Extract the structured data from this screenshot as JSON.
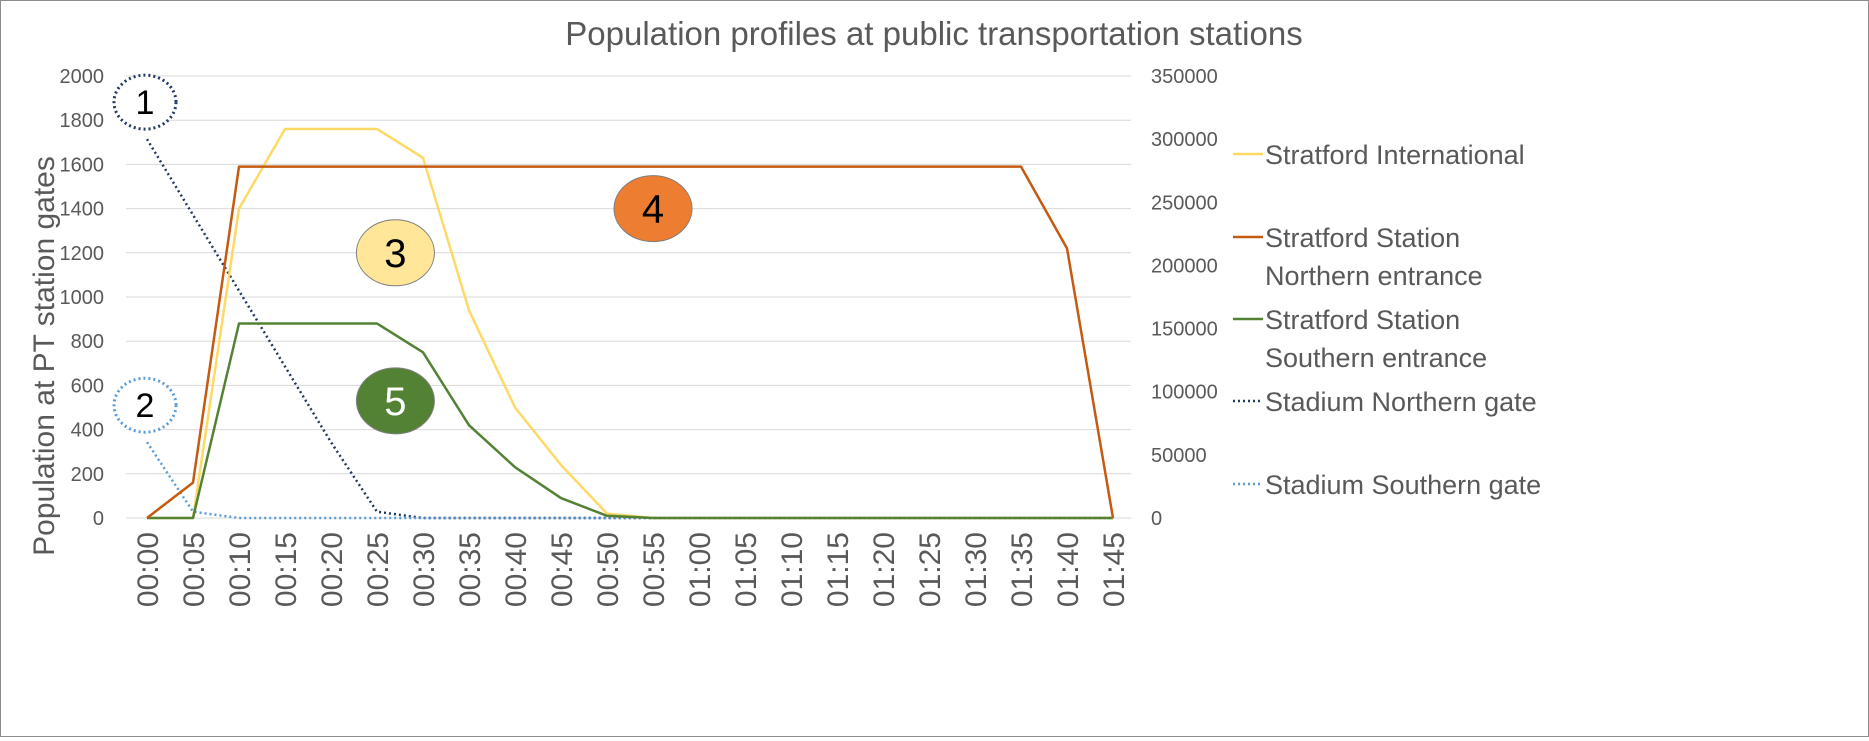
{
  "colors": {
    "stratford_international": "#ffd966",
    "stratford_northern": "#c55a11",
    "stratford_southern": "#548235",
    "stadium_northern": "#1f3864",
    "stadium_southern": "#5b9bd5",
    "grid": "#d9d9d9",
    "axis_text": "#595959",
    "title_text": "#595959",
    "marker3_fill": "#ffe699",
    "marker4_fill": "#ed7d31",
    "marker5_fill": "#548235"
  },
  "chart_data": {
    "type": "line",
    "title": "Population profiles at public transportation stations",
    "ylabel": "Population at PT station gates",
    "y2label": "",
    "xlabel": "",
    "ylim": [
      0,
      2000
    ],
    "y2lim": [
      0,
      350000
    ],
    "yticks": [
      "0",
      "200",
      "400",
      "600",
      "800",
      "1000",
      "1200",
      "1400",
      "1600",
      "1800",
      "2000"
    ],
    "y2ticks": [
      "0",
      "50000",
      "100000",
      "150000",
      "200000",
      "250000",
      "300000",
      "350000"
    ],
    "grid": true,
    "legend_position": "right",
    "categories": [
      "00:00",
      "00:05",
      "00:10",
      "00:15",
      "00:20",
      "00:25",
      "00:30",
      "00:35",
      "00:40",
      "00:45",
      "00:50",
      "00:55",
      "01:00",
      "01:05",
      "01:10",
      "01:15",
      "01:20",
      "01:25",
      "01:30",
      "01:35",
      "01:40",
      "01:45"
    ],
    "series": [
      {
        "name": "Stratford International",
        "axis": "left",
        "style": "solid",
        "color_key": "stratford_international",
        "values": [
          0,
          0,
          1400,
          1760,
          1760,
          1760,
          1630,
          940,
          500,
          240,
          20,
          0,
          0,
          0,
          0,
          0,
          0,
          0,
          0,
          0,
          0,
          0
        ]
      },
      {
        "name": "Stratford Station Northern entrance",
        "axis": "left",
        "style": "solid",
        "color_key": "stratford_northern",
        "values": [
          0,
          160,
          1590,
          1590,
          1590,
          1590,
          1590,
          1590,
          1590,
          1590,
          1590,
          1590,
          1590,
          1590,
          1590,
          1590,
          1590,
          1590,
          1590,
          1590,
          1220,
          0
        ]
      },
      {
        "name": "Stratford Station Southern entrance",
        "axis": "left",
        "style": "solid",
        "color_key": "stratford_southern",
        "values": [
          0,
          0,
          880,
          880,
          880,
          880,
          750,
          420,
          230,
          90,
          10,
          0,
          0,
          0,
          0,
          0,
          0,
          0,
          0,
          0,
          0,
          0
        ]
      },
      {
        "name": "Stadium Northern gate",
        "axis": "right",
        "style": "dotted",
        "color_key": "stadium_northern",
        "values": [
          300000,
          240000,
          180000,
          120000,
          60000,
          5000,
          0,
          0,
          0,
          0,
          0,
          0,
          0,
          0,
          0,
          0,
          0,
          0,
          0,
          0,
          0,
          0
        ]
      },
      {
        "name": "Stadium Southern gate",
        "axis": "right",
        "style": "dotted",
        "color_key": "stadium_southern",
        "values": [
          60000,
          5000,
          0,
          0,
          0,
          0,
          0,
          0,
          0,
          0,
          0,
          0,
          0,
          0,
          0,
          0,
          0,
          0,
          0,
          0,
          0,
          0
        ]
      }
    ],
    "legend_lines": [
      {
        "color_key": "stratford_international",
        "style": "solid",
        "lines": [
          "Stratford International"
        ]
      },
      {
        "color_key": "stratford_northern",
        "style": "solid",
        "lines": [
          "Stratford Station",
          "Northern entrance"
        ]
      },
      {
        "color_key": "stratford_southern",
        "style": "solid",
        "lines": [
          "Stratford Station",
          "Southern entrance"
        ]
      },
      {
        "color_key": "stadium_northern",
        "style": "dotted",
        "lines": [
          "Stadium Northern gate"
        ]
      },
      {
        "color_key": "stadium_southern",
        "style": "dotted",
        "lines": [
          "Stadium Southern gate"
        ]
      }
    ],
    "annotations": [
      {
        "label": "1",
        "style": "dotted-ring",
        "color_key": "stadium_northern",
        "x": "00:00",
        "axis": "right",
        "y": 300000
      },
      {
        "label": "2",
        "style": "dotted-ring",
        "color_key": "stadium_southern",
        "x": "00:00",
        "axis": "right",
        "y": 60000
      },
      {
        "label": "3",
        "style": "filled",
        "fill_key": "marker3_fill",
        "text_color": "#000000",
        "x": "00:27",
        "axis": "left",
        "y": 1200
      },
      {
        "label": "4",
        "style": "filled",
        "fill_key": "marker4_fill",
        "text_color": "#000000",
        "x": "00:55",
        "axis": "left",
        "y": 1400
      },
      {
        "label": "5",
        "style": "filled",
        "fill_key": "marker5_fill",
        "text_color": "#ffffff",
        "x": "00:27",
        "axis": "left",
        "y": 530
      }
    ]
  }
}
